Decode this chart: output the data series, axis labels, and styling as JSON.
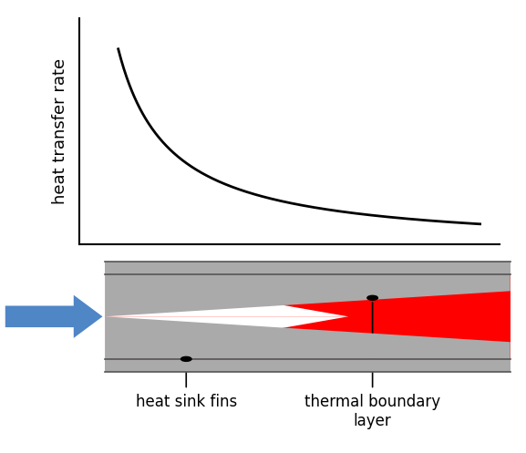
{
  "title": "",
  "ylabel": "heat transfer rate",
  "curve_color": "#000000",
  "curve_lw": 2.0,
  "axis_color": "#000000",
  "background": "#ffffff",
  "gray_color": "#aaaaaa",
  "red_color": "#ff0000",
  "blue_arrow_color": "#4f86c6",
  "label_fontsize": 12,
  "ylabel_fontsize": 13,
  "label1": "heat sink fins",
  "label2": "thermal boundary\nlayer"
}
